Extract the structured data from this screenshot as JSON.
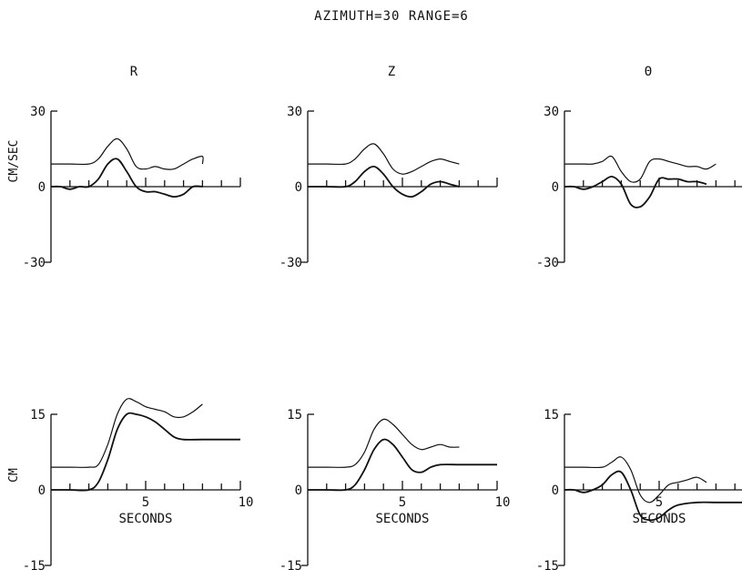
{
  "title": "AZIMUTH=30   RANGE=6",
  "components": [
    "R",
    "Z",
    "Θ"
  ],
  "row_units": [
    "CM/SEC",
    "CM"
  ],
  "xlabel": "SECONDS",
  "chart_data": [
    {
      "type": "line",
      "row": 0,
      "col": 0,
      "component": "R",
      "ylabel": "CM/SEC",
      "ylim": [
        -30,
        30
      ],
      "xlim": [
        0,
        10
      ],
      "yticks": [
        "30",
        "0",
        "-30"
      ],
      "xtick_labels": [],
      "series": [
        {
          "x": [
            0,
            1,
            2,
            2.5,
            3,
            3.5,
            4,
            4.5,
            5,
            5.5,
            6,
            6.5,
            7,
            7.5,
            8,
            8
          ],
          "values": [
            9,
            9,
            9,
            11,
            16,
            19,
            15,
            8,
            7,
            8,
            7,
            7,
            9,
            11,
            12,
            9
          ]
        },
        {
          "x": [
            0,
            0.5,
            1,
            1.5,
            2,
            2.5,
            3,
            3.5,
            4,
            4.5,
            5,
            5.5,
            6,
            6.5,
            7,
            7.5,
            8
          ],
          "values": [
            0,
            0,
            -1,
            0,
            0,
            3,
            9,
            11,
            6,
            0,
            -2,
            -2,
            -3,
            -4,
            -3,
            0,
            0
          ]
        }
      ]
    },
    {
      "type": "line",
      "row": 0,
      "col": 1,
      "component": "Z",
      "ylabel": "",
      "ylim": [
        -30,
        30
      ],
      "xlim": [
        0,
        10
      ],
      "yticks": [
        "30",
        "0",
        "-30"
      ],
      "xtick_labels": [],
      "series": [
        {
          "x": [
            0,
            1,
            2,
            2.5,
            3,
            3.5,
            4,
            4.5,
            5,
            5.5,
            6,
            6.5,
            7,
            7.5,
            8
          ],
          "values": [
            9,
            9,
            9,
            11,
            15,
            17,
            13,
            7,
            5,
            6,
            8,
            10,
            11,
            10,
            9
          ]
        },
        {
          "x": [
            0,
            1,
            2,
            2.5,
            3,
            3.5,
            4,
            4.5,
            5,
            5.5,
            6,
            6.5,
            7,
            7.5,
            8
          ],
          "values": [
            0,
            0,
            0,
            2,
            6,
            8,
            5,
            0,
            -3,
            -4,
            -2,
            1,
            2,
            1,
            0
          ]
        }
      ]
    },
    {
      "type": "line",
      "row": 0,
      "col": 2,
      "component": "Θ",
      "ylabel": "",
      "ylim": [
        -30,
        30
      ],
      "xlim": [
        0,
        10
      ],
      "yticks": [
        "30",
        "0",
        "-30"
      ],
      "xtick_labels": [],
      "series": [
        {
          "x": [
            0,
            1,
            1.5,
            2,
            2.5,
            3,
            3.5,
            4,
            4.5,
            5,
            5.5,
            6,
            6.5,
            7,
            7.5,
            8
          ],
          "values": [
            9,
            9,
            9,
            10,
            12,
            6,
            2,
            3,
            10,
            11,
            10,
            9,
            8,
            8,
            7,
            9
          ]
        },
        {
          "x": [
            0,
            0.5,
            1,
            1.5,
            2,
            2.5,
            3,
            3.5,
            4,
            4.5,
            5,
            5.5,
            6,
            6.5,
            7,
            7.5
          ],
          "values": [
            0,
            0,
            -1,
            0,
            2,
            4,
            1,
            -7,
            -8,
            -4,
            3,
            3,
            3,
            2,
            2,
            1
          ]
        }
      ]
    },
    {
      "type": "line",
      "row": 1,
      "col": 0,
      "component": "R",
      "ylabel": "CM",
      "ylim": [
        -15,
        15
      ],
      "xlim": [
        0,
        10
      ],
      "yticks": [
        "15",
        "0",
        "-15"
      ],
      "xtick_labels": [
        "5",
        "10"
      ],
      "series": [
        {
          "x": [
            0,
            1,
            2,
            2.5,
            3,
            3.5,
            4,
            4.5,
            5,
            5.5,
            6,
            6.5,
            7,
            7.5,
            8
          ],
          "values": [
            4.5,
            4.5,
            4.5,
            5,
            9,
            15,
            18,
            17.5,
            16.5,
            16,
            15.5,
            14.5,
            14.5,
            15.5,
            17
          ]
        },
        {
          "x": [
            0,
            1,
            2,
            2.5,
            3,
            3.5,
            4,
            4.5,
            5,
            5.5,
            6,
            6.5,
            7,
            8,
            9,
            10
          ],
          "values": [
            0,
            0,
            0,
            1.5,
            6,
            12,
            15,
            15,
            14.5,
            13.5,
            12,
            10.5,
            10,
            10,
            10,
            10
          ]
        }
      ]
    },
    {
      "type": "line",
      "row": 1,
      "col": 1,
      "component": "Z",
      "ylabel": "",
      "ylim": [
        -15,
        15
      ],
      "xlim": [
        0,
        10
      ],
      "yticks": [
        "15",
        "0",
        "-15"
      ],
      "xtick_labels": [
        "5",
        "10"
      ],
      "series": [
        {
          "x": [
            0,
            1,
            2,
            2.5,
            3,
            3.5,
            4,
            4.5,
            5,
            5.5,
            6,
            6.5,
            7,
            7.5,
            8
          ],
          "values": [
            4.5,
            4.5,
            4.5,
            5,
            7.5,
            12,
            14,
            13,
            11,
            9,
            8,
            8.5,
            9,
            8.5,
            8.5
          ]
        },
        {
          "x": [
            0,
            1,
            2,
            2.5,
            3,
            3.5,
            4,
            4.5,
            5,
            5.5,
            6,
            6.5,
            7,
            8,
            9,
            10
          ],
          "values": [
            0,
            0,
            0,
            1,
            4,
            8,
            10,
            9,
            6.5,
            4,
            3.5,
            4.5,
            5,
            5,
            5,
            5
          ]
        }
      ]
    },
    {
      "type": "line",
      "row": 1,
      "col": 2,
      "component": "Θ",
      "ylabel": "",
      "ylim": [
        -15,
        15
      ],
      "xlim": [
        0,
        10
      ],
      "yticks": [
        "15",
        "0",
        "-15"
      ],
      "xtick_labels": [
        "5",
        "10"
      ],
      "series": [
        {
          "x": [
            0,
            1,
            2,
            2.5,
            3,
            3.5,
            4,
            4.5,
            5,
            5.5,
            6,
            6.5,
            7,
            7.5
          ],
          "values": [
            4.5,
            4.5,
            4.5,
            5.5,
            6.5,
            4,
            -1,
            -2.5,
            -1,
            1,
            1.5,
            2,
            2.5,
            1.5
          ]
        },
        {
          "x": [
            0,
            0.5,
            1,
            1.5,
            2,
            2.5,
            3,
            3.5,
            4,
            4.5,
            5,
            5.5,
            6,
            7,
            8,
            9,
            10
          ],
          "values": [
            0,
            0,
            -0.5,
            0,
            1,
            3,
            3.5,
            0,
            -5,
            -6,
            -5.5,
            -4,
            -3,
            -2.5,
            -2.5,
            -2.5,
            -2.5
          ]
        }
      ]
    }
  ]
}
